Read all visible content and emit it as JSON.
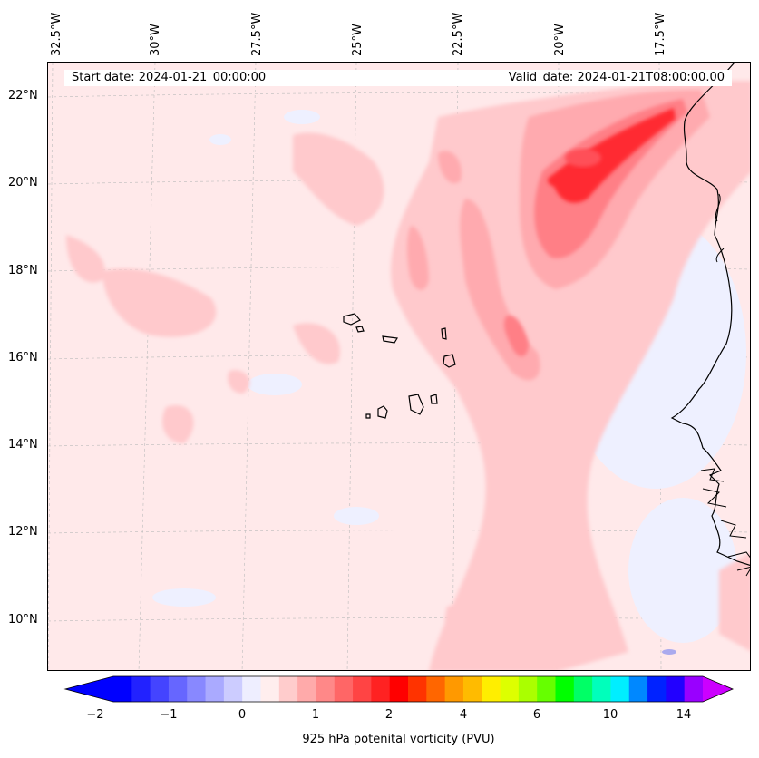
{
  "map": {
    "start_date_text": "Start date: 2024-01-21_00:00:00",
    "valid_date_text": "Valid_date: 2024-01-21T08:00:00.00",
    "lon_labels": [
      "32.5°W",
      "30°W",
      "27.5°W",
      "25°W",
      "22.5°W",
      "20°W",
      "17.5°W"
    ],
    "lat_labels": [
      "22°N",
      "20°N",
      "18°N",
      "16°N",
      "14°N",
      "12°N",
      "10°N"
    ],
    "variable": "925 hPa potenital vorticity (PVU)",
    "features": [
      "West African coastline",
      "Cape Verde islands"
    ]
  },
  "colorbar": {
    "title": "925 hPa potenital vorticity (PVU)",
    "tick_labels": [
      "−2",
      "−1",
      "0",
      "1",
      "2",
      "4",
      "6",
      "10",
      "14"
    ],
    "colors": [
      "#0000ff",
      "#2222ff",
      "#4444ff",
      "#6666ff",
      "#8888ff",
      "#aaaaff",
      "#ccccff",
      "#eeeeff",
      "#ffeeee",
      "#ffcccc",
      "#ffaaaa",
      "#ff8888",
      "#ff6666",
      "#ff4444",
      "#ff2222",
      "#ff0000",
      "#ff3300",
      "#ff6600",
      "#ff9900",
      "#ffbb00",
      "#ffee00",
      "#ddff00",
      "#aaff00",
      "#66ff00",
      "#00ff00",
      "#00ff66",
      "#00ffbb",
      "#00eeff",
      "#0088ff",
      "#0022ff",
      "#2200ff",
      "#9900ff"
    ],
    "under_color": "#0000ff",
    "over_color": "#cc00ff"
  }
}
